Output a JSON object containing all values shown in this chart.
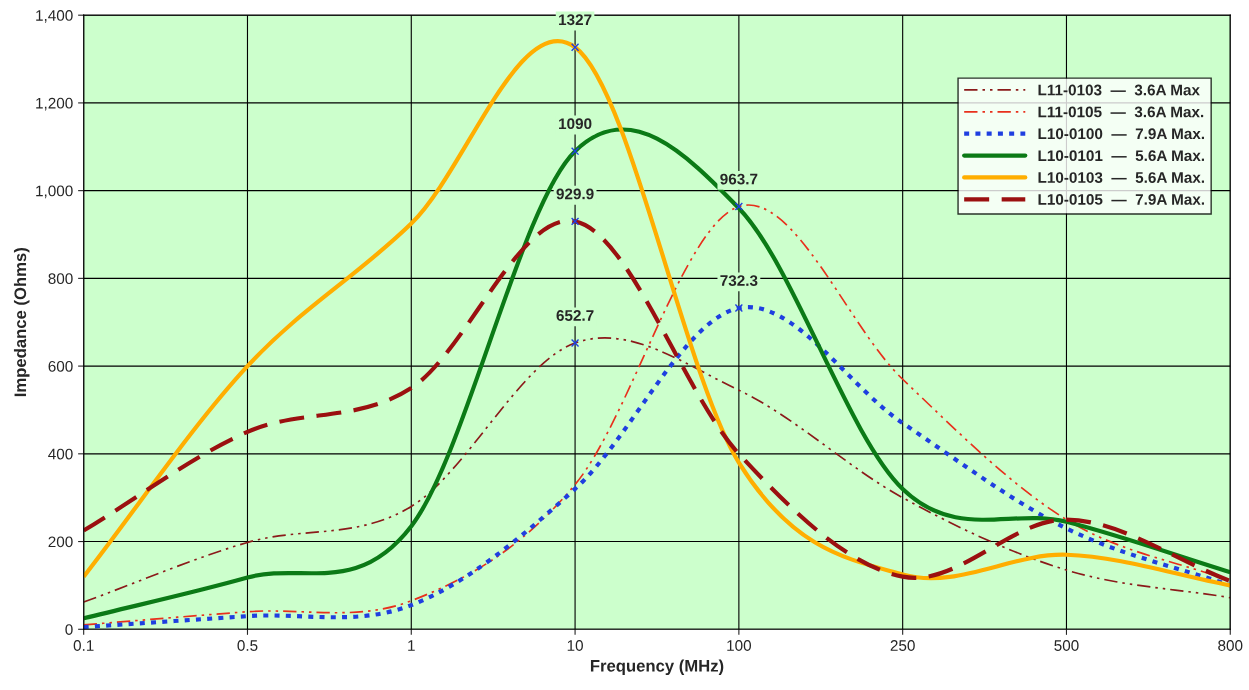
{
  "chart_data": {
    "type": "line",
    "xlabel": "Frequency (MHz)",
    "ylabel": "Impedance (Ohms)",
    "categories": [
      "0.1",
      "0.5",
      "1",
      "10",
      "100",
      "250",
      "500",
      "800"
    ],
    "ylim": [
      0,
      1400
    ],
    "yticks": [
      {
        "value": 0,
        "label": "0"
      },
      {
        "value": 200,
        "label": "200"
      },
      {
        "value": 400,
        "label": "400"
      },
      {
        "value": 600,
        "label": "600"
      },
      {
        "value": 800,
        "label": "800"
      },
      {
        "value": 1000,
        "label": "1,000"
      },
      {
        "value": 1200,
        "label": "1,200"
      },
      {
        "value": 1400,
        "label": "1,400"
      }
    ],
    "grid": true,
    "legend": "top right",
    "marker": "none",
    "series": [
      {
        "name": "L11-0103  —  3.6A Max",
        "color": "#8b1a1a",
        "line_style": "dashdot",
        "values": [
          62,
          198,
          280,
          652.7,
          545,
          300,
          135,
          72
        ],
        "value_labels": [
          null,
          null,
          null,
          "652.7",
          null,
          null,
          null,
          null
        ]
      },
      {
        "name": "L11-0105  —  3.6A Max.",
        "color": "#e8301c",
        "line_style": "dashdot",
        "values": [
          10,
          40,
          65,
          330,
          963.7,
          570,
          250,
          110
        ],
        "value_labels": [
          null,
          null,
          null,
          null,
          "963.7",
          null,
          null,
          null
        ]
      },
      {
        "name": "L10-0100  —  7.9A Max.",
        "color": "#1f3fe0",
        "line_style": "dotted",
        "values": [
          5,
          30,
          55,
          320,
          732.3,
          470,
          230,
          100
        ],
        "value_labels": [
          null,
          null,
          null,
          null,
          "732.3",
          null,
          null,
          null
        ]
      },
      {
        "name": "L10-0101  —  5.6A Max.",
        "color": "#0b7a16",
        "line_style": "solid",
        "values": [
          25,
          118,
          235,
          1090,
          960,
          320,
          245,
          130
        ],
        "value_labels": [
          null,
          null,
          null,
          "1090",
          null,
          null,
          null,
          null
        ]
      },
      {
        "name": "L10-0103  —  5.6A Max.",
        "color": "#ffae00",
        "line_style": "solid",
        "values": [
          120,
          600,
          925,
          1327,
          380,
          125,
          170,
          100
        ],
        "value_labels": [
          null,
          null,
          null,
          "1327",
          null,
          null,
          null,
          null
        ]
      },
      {
        "name": "L10-0105  —  7.9A Max.",
        "color": "#9b1010",
        "line_style": "dashed",
        "values": [
          225,
          450,
          550,
          929.9,
          400,
          120,
          250,
          110
        ],
        "value_labels": [
          null,
          null,
          null,
          "929.9",
          null,
          null,
          null,
          null
        ]
      }
    ]
  }
}
